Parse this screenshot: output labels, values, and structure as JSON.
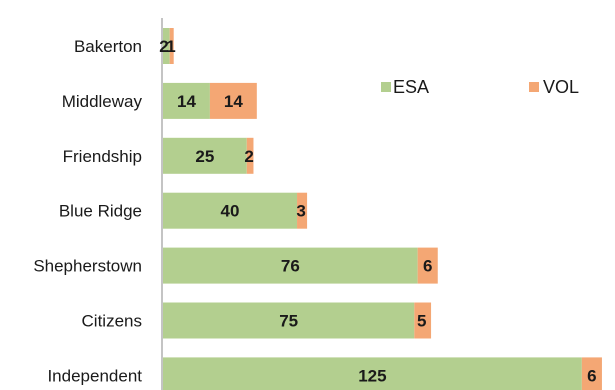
{
  "chart_data": {
    "type": "bar",
    "orientation": "horizontal",
    "stacked": true,
    "categories": [
      "Bakerton",
      "Middleway",
      "Friendship",
      "Blue Ridge",
      "Shepherstown",
      "Citizens",
      "Independent"
    ],
    "series": [
      {
        "name": "ESA",
        "values": [
          2,
          14,
          25,
          40,
          76,
          75,
          125
        ],
        "color": "#b3cf8f"
      },
      {
        "name": "VOL",
        "values": [
          1,
          14,
          2,
          3,
          6,
          5,
          6
        ],
        "color": "#f4a774"
      }
    ],
    "title": "",
    "xlabel": "",
    "ylabel": "",
    "xlim": [
      0,
      134
    ],
    "grid": false,
    "legend": "top-right"
  }
}
